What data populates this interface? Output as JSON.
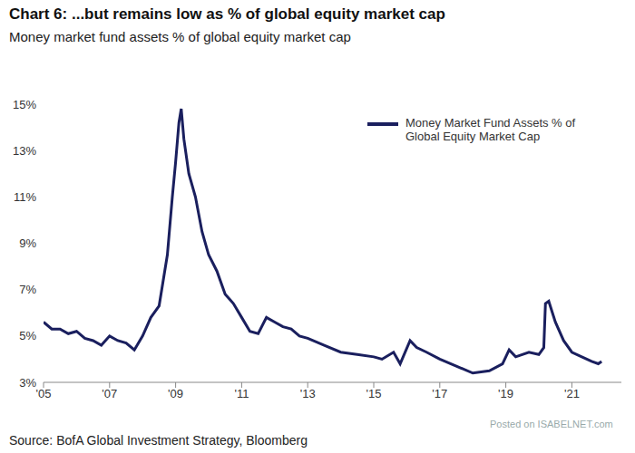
{
  "chart_data": {
    "type": "line",
    "title": "Chart 6: ...but remains low as % of global equity market cap",
    "subtitle": "Money market fund assets % of global equity market cap",
    "source": "Source: BofA Global Investment Strategy, Bloomberg",
    "annotations": [
      "Posted on ISABELNET.com"
    ],
    "legend": "upper right",
    "grid": false,
    "x": [
      2005.0,
      2005.25,
      2005.5,
      2005.75,
      2006.0,
      2006.25,
      2006.5,
      2006.75,
      2007.0,
      2007.25,
      2007.5,
      2007.75,
      2008.0,
      2008.25,
      2008.5,
      2008.75,
      2008.9,
      2009.0,
      2009.1,
      2009.17,
      2009.25,
      2009.4,
      2009.6,
      2009.8,
      2010.0,
      2010.25,
      2010.5,
      2010.75,
      2011.0,
      2011.25,
      2011.5,
      2011.75,
      2012.0,
      2012.25,
      2012.5,
      2012.75,
      2013.0,
      2013.5,
      2014.0,
      2014.5,
      2015.0,
      2015.25,
      2015.6,
      2015.8,
      2016.1,
      2016.3,
      2016.6,
      2017.0,
      2017.5,
      2018.0,
      2018.5,
      2018.9,
      2019.1,
      2019.3,
      2019.7,
      2020.0,
      2020.15,
      2020.2,
      2020.3,
      2020.5,
      2020.75,
      2021.0,
      2021.3,
      2021.6,
      2021.8,
      2021.9
    ],
    "series": [
      {
        "name": "Money Market Fund Assets % of Global Equity Market Cap",
        "color": "#1a1f5e",
        "values": [
          5.6,
          5.3,
          5.3,
          5.1,
          5.2,
          4.9,
          4.8,
          4.6,
          5.0,
          4.8,
          4.7,
          4.4,
          5.0,
          5.8,
          6.3,
          8.5,
          11.0,
          12.5,
          14.2,
          14.8,
          13.5,
          12.0,
          11.0,
          9.5,
          8.5,
          7.8,
          6.8,
          6.4,
          5.8,
          5.2,
          5.1,
          5.8,
          5.6,
          5.4,
          5.3,
          5.0,
          4.9,
          4.6,
          4.3,
          4.2,
          4.1,
          4.0,
          4.3,
          3.8,
          4.8,
          4.5,
          4.3,
          4.0,
          3.7,
          3.4,
          3.5,
          3.8,
          4.4,
          4.1,
          4.3,
          4.2,
          4.5,
          6.4,
          6.5,
          5.6,
          4.8,
          4.3,
          4.1,
          3.9,
          3.8,
          3.9
        ]
      }
    ],
    "xlim": [
      2005,
      2022.5
    ],
    "xticks": [
      {
        "value": 2005,
        "label": "'05"
      },
      {
        "value": 2007,
        "label": "'07"
      },
      {
        "value": 2009,
        "label": "'09"
      },
      {
        "value": 2011,
        "label": "'11"
      },
      {
        "value": 2013,
        "label": "'13"
      },
      {
        "value": 2015,
        "label": "'15"
      },
      {
        "value": 2017,
        "label": "'17"
      },
      {
        "value": 2019,
        "label": "'19"
      },
      {
        "value": 2021,
        "label": "'21"
      }
    ],
    "ylim": [
      3,
      15
    ],
    "yticks": [
      {
        "value": 3,
        "label": "3%"
      },
      {
        "value": 5,
        "label": "5%"
      },
      {
        "value": 7,
        "label": "7%"
      },
      {
        "value": 9,
        "label": "9%"
      },
      {
        "value": 11,
        "label": "11%"
      },
      {
        "value": 13,
        "label": "13%"
      },
      {
        "value": 15,
        "label": "15%"
      }
    ]
  }
}
